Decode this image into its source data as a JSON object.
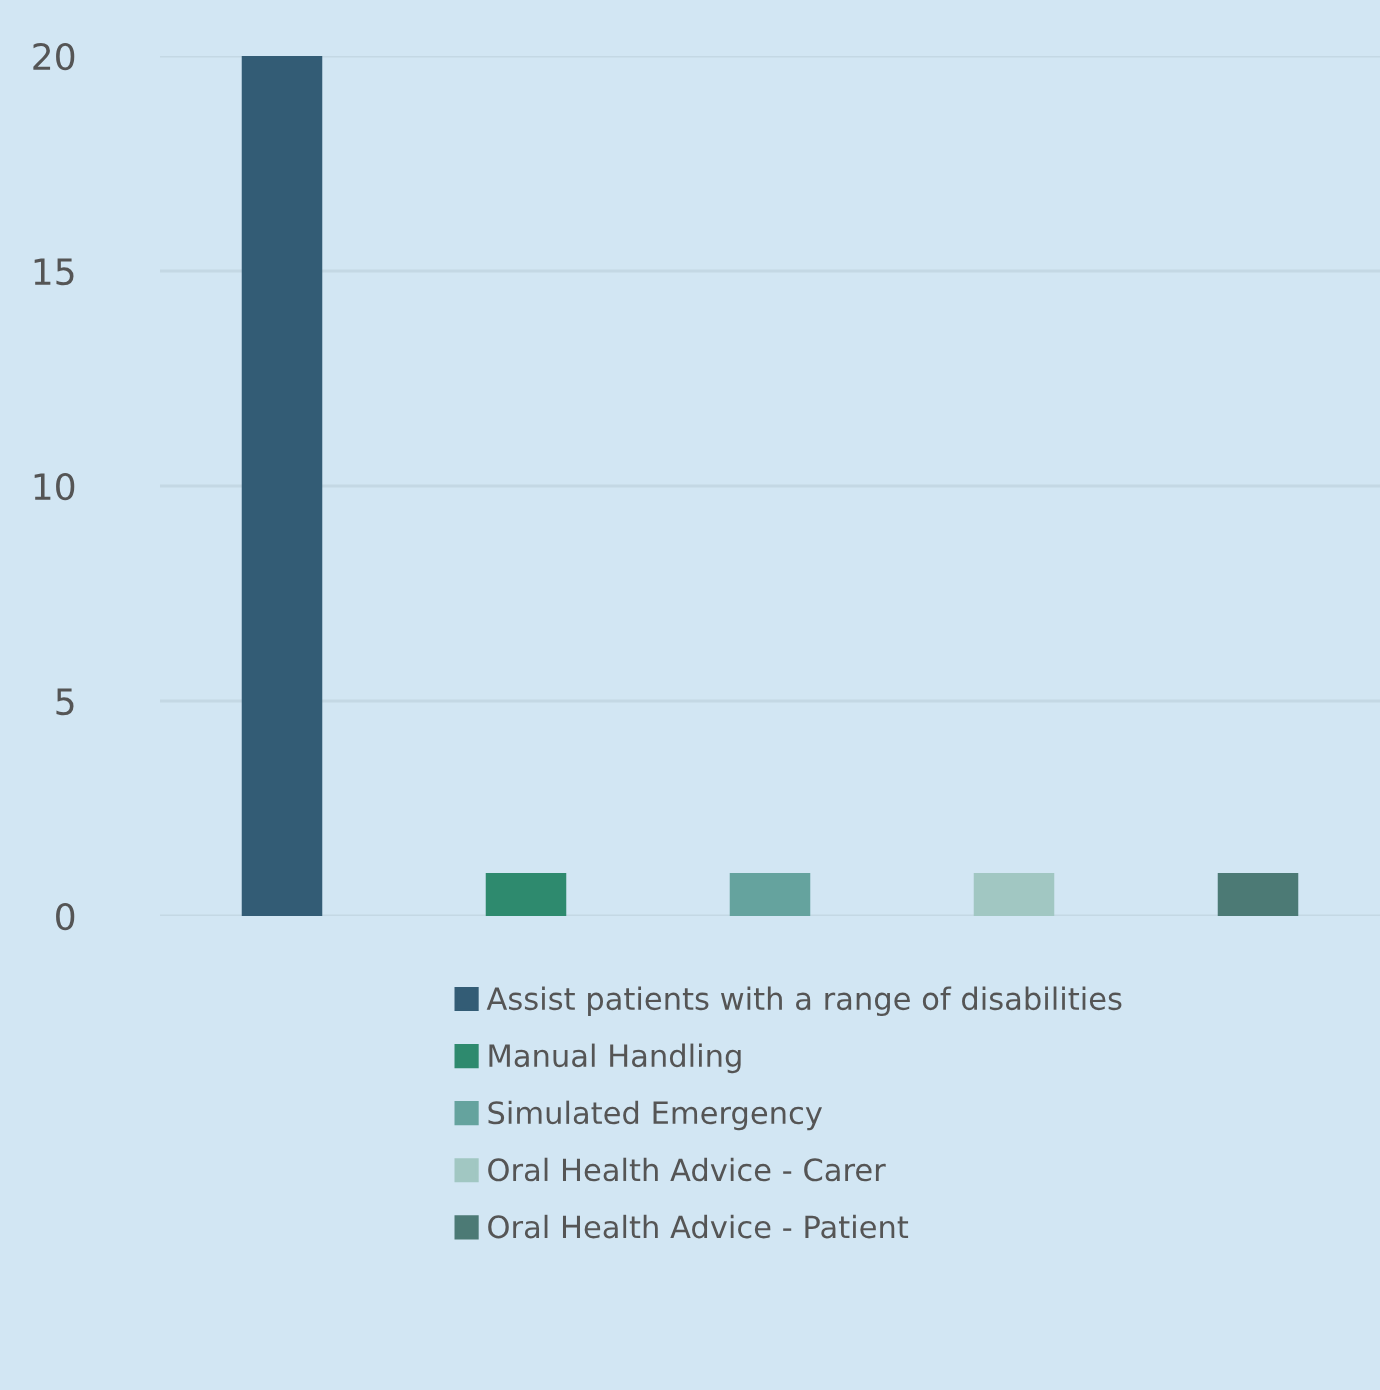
{
  "chart_data": {
    "type": "bar",
    "categories": [
      null,
      null,
      null,
      null,
      null
    ],
    "series": [
      {
        "name": "Assist patients with a range of disabilities",
        "color": "#335c75",
        "values": [
          20,
          null,
          null,
          null,
          null
        ]
      },
      {
        "name": "Manual Handling",
        "color": "#2e8a6e",
        "values": [
          null,
          1,
          null,
          null,
          null
        ]
      },
      {
        "name": "Simulated Emergency",
        "color": "#65a39e",
        "values": [
          null,
          null,
          1,
          null,
          null
        ]
      },
      {
        "name": "Oral Health Advice - Carer",
        "color": "#a1c7c2",
        "values": [
          null,
          null,
          null,
          1,
          null
        ]
      },
      {
        "name": "Oral Health Advice - Patient",
        "color": "#4c7a75",
        "values": [
          null,
          null,
          null,
          null,
          1
        ]
      }
    ],
    "ylim": [
      0,
      20
    ],
    "yticks": [
      0,
      5,
      10,
      15,
      20
    ],
    "grid": "y",
    "legend": "bottom"
  }
}
